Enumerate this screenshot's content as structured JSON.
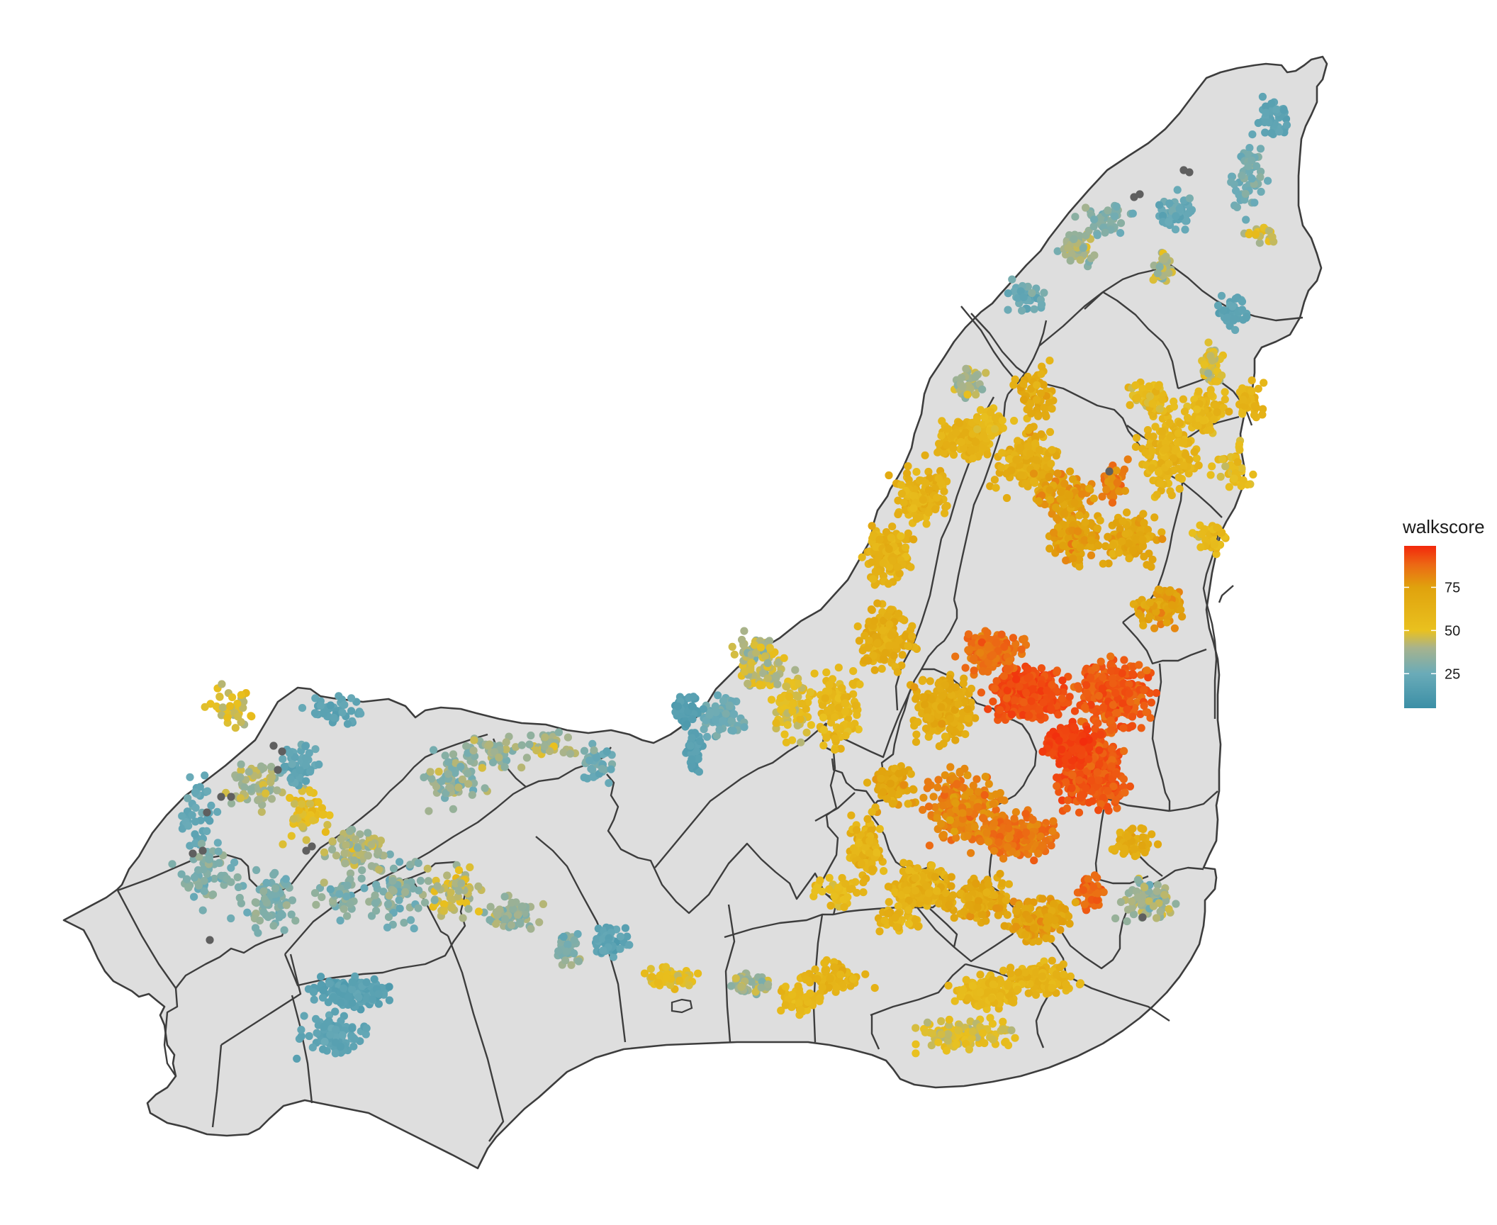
{
  "map": {
    "region": "Montreal island",
    "boundary_stroke": "#3d3d3d",
    "land_fill": "#dedede",
    "background": "#ffffff",
    "na_point_color": "#5f5f5f"
  },
  "legend": {
    "title": "walkscore",
    "ticks": [
      "25",
      "50",
      "75"
    ],
    "scale": {
      "min": 5,
      "max": 99,
      "stops": [
        {
          "value": 5,
          "color": "#3b8fa6"
        },
        {
          "value": 25,
          "color": "#6aabb8"
        },
        {
          "value": 40,
          "color": "#a7b38d"
        },
        {
          "value": 50,
          "color": "#e9c11f"
        },
        {
          "value": 75,
          "color": "#e0a20d"
        },
        {
          "value": 88,
          "color": "#ec6914"
        },
        {
          "value": 99,
          "color": "#f3280c"
        }
      ]
    }
  },
  "chart_data": {
    "type": "scatter",
    "encoding": "map points colored by walkscore (continuous gradient), over borough boundaries",
    "color_variable": "walkscore",
    "color_range": [
      5,
      99
    ],
    "legend_ticks": [
      25,
      50,
      75
    ],
    "na_points_present": true,
    "pattern": "highest walkscores (75-99) concentrated in the central-east core of the island; mid values (50-75) across the north-east and south-east; low values (under 25) in the western and far north-east areas"
  }
}
